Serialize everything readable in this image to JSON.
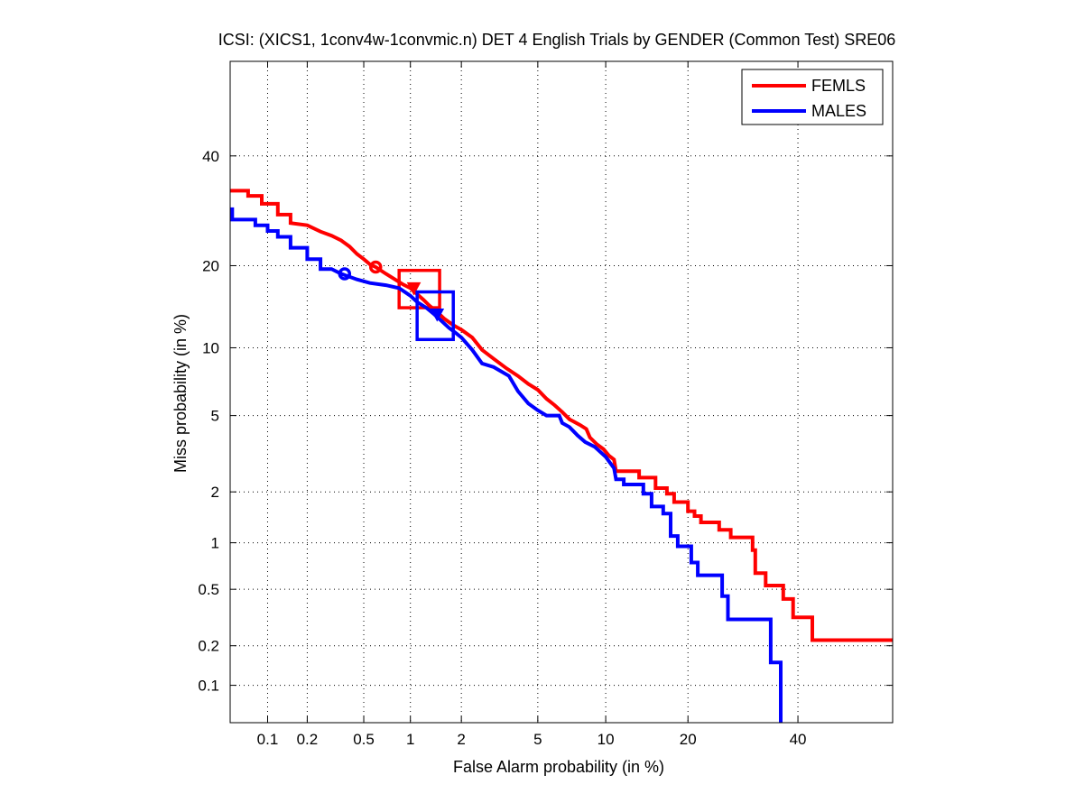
{
  "chart_data": {
    "type": "line",
    "subtype": "DET curve",
    "title": "ICSI: (XICS1, 1conv4w-1convmic.n) DET 4 English Trials by GENDER (Common Test) SRE06",
    "xlabel": "False Alarm probability (in %)",
    "ylabel": "Miss probability (in %)",
    "x_scale": "normal-deviate (probit)",
    "y_scale": "normal-deviate (probit)",
    "xlim": [
      0.05,
      60
    ],
    "ylim": [
      0.05,
      60
    ],
    "x_ticks": [
      {
        "value": 0.1,
        "label": "0.1"
      },
      {
        "value": 0.2,
        "label": "0.2"
      },
      {
        "value": 0.5,
        "label": "0.5"
      },
      {
        "value": 1,
        "label": "1"
      },
      {
        "value": 2,
        "label": "2"
      },
      {
        "value": 5,
        "label": "5"
      },
      {
        "value": 10,
        "label": "10"
      },
      {
        "value": 20,
        "label": "20"
      },
      {
        "value": 40,
        "label": "40"
      }
    ],
    "y_ticks": [
      {
        "value": 0.1,
        "label": "0.1"
      },
      {
        "value": 0.2,
        "label": "0.2"
      },
      {
        "value": 0.5,
        "label": "0.5"
      },
      {
        "value": 1,
        "label": "1"
      },
      {
        "value": 2,
        "label": "2"
      },
      {
        "value": 5,
        "label": "5"
      },
      {
        "value": 10,
        "label": "10"
      },
      {
        "value": 20,
        "label": "20"
      },
      {
        "value": 40,
        "label": "40"
      }
    ],
    "grid": true,
    "legend_position": "top-right",
    "series": [
      {
        "name": "FEMLS",
        "color": "#ff0000",
        "points": [
          [
            0.05,
            33.0
          ],
          [
            0.07,
            33.0
          ],
          [
            0.07,
            32.0
          ],
          [
            0.09,
            32.0
          ],
          [
            0.09,
            30.5
          ],
          [
            0.12,
            30.5
          ],
          [
            0.12,
            28.5
          ],
          [
            0.15,
            28.5
          ],
          [
            0.15,
            27.0
          ],
          [
            0.2,
            26.6
          ],
          [
            0.25,
            25.5
          ],
          [
            0.3,
            24.8
          ],
          [
            0.35,
            24.0
          ],
          [
            0.4,
            23.0
          ],
          [
            0.45,
            21.8
          ],
          [
            0.5,
            21.0
          ],
          [
            0.55,
            20.2
          ],
          [
            0.6,
            19.8
          ],
          [
            0.7,
            18.8
          ],
          [
            0.8,
            18.0
          ],
          [
            0.9,
            17.3
          ],
          [
            1.0,
            16.8
          ],
          [
            1.1,
            16.0
          ],
          [
            1.2,
            15.3
          ],
          [
            1.3,
            14.6
          ],
          [
            1.45,
            13.8
          ],
          [
            1.6,
            13.0
          ],
          [
            1.8,
            12.3
          ],
          [
            2.0,
            11.8
          ],
          [
            2.3,
            11.0
          ],
          [
            2.6,
            9.8
          ],
          [
            3.0,
            9.0
          ],
          [
            3.5,
            8.2
          ],
          [
            4.0,
            7.6
          ],
          [
            4.5,
            7.0
          ],
          [
            5.0,
            6.6
          ],
          [
            5.5,
            6.0
          ],
          [
            6.0,
            5.6
          ],
          [
            6.5,
            5.2
          ],
          [
            7.0,
            4.8
          ],
          [
            7.8,
            4.5
          ],
          [
            8.3,
            4.3
          ],
          [
            8.6,
            3.9
          ],
          [
            9.2,
            3.6
          ],
          [
            9.8,
            3.4
          ],
          [
            10.3,
            3.15
          ],
          [
            10.8,
            3.0
          ],
          [
            11.0,
            2.6
          ],
          [
            13.5,
            2.6
          ],
          [
            13.5,
            2.4
          ],
          [
            15.5,
            2.4
          ],
          [
            15.5,
            2.1
          ],
          [
            17.0,
            2.1
          ],
          [
            17.0,
            1.95
          ],
          [
            18.0,
            1.95
          ],
          [
            18.0,
            1.75
          ],
          [
            20.0,
            1.75
          ],
          [
            20.0,
            1.55
          ],
          [
            21.0,
            1.55
          ],
          [
            21.0,
            1.45
          ],
          [
            22.0,
            1.45
          ],
          [
            22.0,
            1.33
          ],
          [
            25.0,
            1.33
          ],
          [
            25.0,
            1.2
          ],
          [
            27.0,
            1.2
          ],
          [
            27.0,
            1.08
          ],
          [
            31.0,
            1.08
          ],
          [
            31.0,
            0.9
          ],
          [
            31.5,
            0.9
          ],
          [
            31.5,
            0.64
          ],
          [
            33.5,
            0.64
          ],
          [
            33.5,
            0.53
          ],
          [
            37.0,
            0.53
          ],
          [
            37.0,
            0.43
          ],
          [
            39.0,
            0.43
          ],
          [
            39.0,
            0.32
          ],
          [
            43.0,
            0.32
          ],
          [
            43.0,
            0.22
          ],
          [
            60.0,
            0.22
          ]
        ],
        "dcf_min_point": [
          0.6,
          19.8
        ],
        "actual_dcf_point": [
          1.05,
          16.8
        ],
        "confidence_box": {
          "x": [
            0.85,
            1.5
          ],
          "y": [
            14.3,
            19.3
          ]
        }
      },
      {
        "name": "MALES",
        "color": "#0000ff",
        "points": [
          [
            0.05,
            29.5
          ],
          [
            0.052,
            29.5
          ],
          [
            0.052,
            27.6
          ],
          [
            0.08,
            27.6
          ],
          [
            0.08,
            26.6
          ],
          [
            0.1,
            26.6
          ],
          [
            0.1,
            25.6
          ],
          [
            0.12,
            25.6
          ],
          [
            0.12,
            24.6
          ],
          [
            0.15,
            24.6
          ],
          [
            0.15,
            22.8
          ],
          [
            0.2,
            22.8
          ],
          [
            0.2,
            21.0
          ],
          [
            0.25,
            21.0
          ],
          [
            0.25,
            19.5
          ],
          [
            0.3,
            19.5
          ],
          [
            0.35,
            18.8
          ],
          [
            0.45,
            18.0
          ],
          [
            0.55,
            17.5
          ],
          [
            0.7,
            17.2
          ],
          [
            0.85,
            16.8
          ],
          [
            1.0,
            15.8
          ],
          [
            1.1,
            15.0
          ],
          [
            1.25,
            14.3
          ],
          [
            1.4,
            13.5
          ],
          [
            1.55,
            12.7
          ],
          [
            1.7,
            12.0
          ],
          [
            1.85,
            11.5
          ],
          [
            2.0,
            11.0
          ],
          [
            2.3,
            9.8
          ],
          [
            2.6,
            8.6
          ],
          [
            3.0,
            8.3
          ],
          [
            3.6,
            7.6
          ],
          [
            4.0,
            6.5
          ],
          [
            4.5,
            5.7
          ],
          [
            5.0,
            5.3
          ],
          [
            5.5,
            5.0
          ],
          [
            6.3,
            5.0
          ],
          [
            6.5,
            4.6
          ],
          [
            7.0,
            4.4
          ],
          [
            7.6,
            4.0
          ],
          [
            8.2,
            3.7
          ],
          [
            9.0,
            3.5
          ],
          [
            10.0,
            3.1
          ],
          [
            10.8,
            2.7
          ],
          [
            11.0,
            2.35
          ],
          [
            11.8,
            2.35
          ],
          [
            11.8,
            2.2
          ],
          [
            14.0,
            2.2
          ],
          [
            14.0,
            1.95
          ],
          [
            15.0,
            1.95
          ],
          [
            15.0,
            1.65
          ],
          [
            16.5,
            1.65
          ],
          [
            16.5,
            1.5
          ],
          [
            17.5,
            1.5
          ],
          [
            17.5,
            1.1
          ],
          [
            18.5,
            1.1
          ],
          [
            18.5,
            0.95
          ],
          [
            20.5,
            0.95
          ],
          [
            20.5,
            0.75
          ],
          [
            21.5,
            0.75
          ],
          [
            21.5,
            0.62
          ],
          [
            25.5,
            0.62
          ],
          [
            25.5,
            0.45
          ],
          [
            26.5,
            0.45
          ],
          [
            26.5,
            0.31
          ],
          [
            34.5,
            0.31
          ],
          [
            34.5,
            0.15
          ],
          [
            36.5,
            0.15
          ],
          [
            36.5,
            0.05
          ]
        ],
        "dcf_min_point": [
          0.37,
          18.8
        ],
        "actual_dcf_point": [
          1.45,
          13.5
        ],
        "confidence_box": {
          "x": [
            1.1,
            1.8
          ],
          "y": [
            10.8,
            16.3
          ]
        }
      }
    ]
  }
}
